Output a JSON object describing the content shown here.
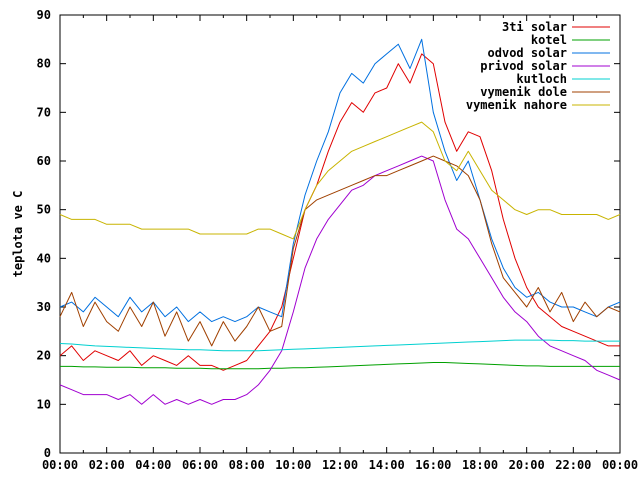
{
  "chart_data": {
    "type": "line",
    "title": "",
    "xlabel": "",
    "ylabel": "teplota ve C",
    "xlim": [
      "00:00",
      "24:00"
    ],
    "ylim": [
      0,
      90
    ],
    "x_ticks": [
      "00:00",
      "02:00",
      "04:00",
      "06:00",
      "08:00",
      "10:00",
      "12:00",
      "14:00",
      "16:00",
      "18:00",
      "20:00",
      "22:00",
      "00:00"
    ],
    "y_ticks": [
      "0",
      "10",
      "20",
      "30",
      "40",
      "50",
      "60",
      "70",
      "80",
      "90"
    ],
    "grid": false,
    "legend_position": "top-right",
    "x": [
      "00:00",
      "00:30",
      "01:00",
      "01:30",
      "02:00",
      "02:30",
      "03:00",
      "03:30",
      "04:00",
      "04:30",
      "05:00",
      "05:30",
      "06:00",
      "06:30",
      "07:00",
      "07:30",
      "08:00",
      "08:30",
      "09:00",
      "09:30",
      "10:00",
      "10:30",
      "11:00",
      "11:30",
      "12:00",
      "12:30",
      "13:00",
      "13:30",
      "14:00",
      "14:30",
      "15:00",
      "15:30",
      "16:00",
      "16:30",
      "17:00",
      "17:30",
      "18:00",
      "18:30",
      "19:00",
      "19:30",
      "20:00",
      "20:30",
      "21:00",
      "21:30",
      "22:00",
      "22:30",
      "23:00",
      "23:30",
      "24:00"
    ],
    "series": [
      {
        "name": "3ti solar",
        "color": "#e00000",
        "values": [
          20,
          22,
          19,
          21,
          20,
          19,
          21,
          18,
          20,
          19,
          18,
          20,
          18,
          18,
          17,
          18,
          19,
          22,
          25,
          30,
          40,
          50,
          55,
          62,
          68,
          72,
          70,
          74,
          75,
          80,
          76,
          82,
          80,
          68,
          62,
          66,
          65,
          58,
          48,
          40,
          34,
          30,
          28,
          26,
          25,
          24,
          23,
          22,
          22
        ]
      },
      {
        "name": "kotel",
        "color": "#00a000",
        "values": [
          17.8,
          17.8,
          17.7,
          17.7,
          17.6,
          17.6,
          17.6,
          17.5,
          17.5,
          17.5,
          17.4,
          17.4,
          17.4,
          17.3,
          17.3,
          17.3,
          17.3,
          17.3,
          17.4,
          17.4,
          17.5,
          17.5,
          17.6,
          17.7,
          17.8,
          17.9,
          18,
          18.1,
          18.2,
          18.3,
          18.4,
          18.5,
          18.6,
          18.6,
          18.5,
          18.4,
          18.3,
          18.2,
          18.1,
          18,
          17.9,
          17.9,
          17.8,
          17.8,
          17.8,
          17.8,
          17.8,
          17.8,
          17.8
        ]
      },
      {
        "name": "odvod solar",
        "color": "#0070e0",
        "values": [
          30,
          31,
          29,
          32,
          30,
          28,
          32,
          29,
          31,
          28,
          30,
          27,
          29,
          27,
          28,
          27,
          28,
          30,
          29,
          28,
          43,
          53,
          60,
          66,
          74,
          78,
          76,
          80,
          82,
          84,
          79,
          85,
          70,
          62,
          56,
          60,
          52,
          44,
          38,
          34,
          32,
          33,
          31,
          30,
          30,
          29,
          28,
          30,
          31
        ]
      },
      {
        "name": "privod solar",
        "color": "#a000d0",
        "values": [
          14,
          13,
          12,
          12,
          12,
          11,
          12,
          10,
          12,
          10,
          11,
          10,
          11,
          10,
          11,
          11,
          12,
          14,
          17,
          21,
          29,
          38,
          44,
          48,
          51,
          54,
          55,
          57,
          58,
          59,
          60,
          61,
          60,
          52,
          46,
          44,
          40,
          36,
          32,
          29,
          27,
          24,
          22,
          21,
          20,
          19,
          17,
          16,
          15
        ]
      },
      {
        "name": "kutloch",
        "color": "#00d0d0",
        "values": [
          22.5,
          22.4,
          22.2,
          22,
          21.9,
          21.8,
          21.7,
          21.6,
          21.5,
          21.4,
          21.3,
          21.2,
          21.2,
          21.1,
          21,
          21,
          21,
          21,
          21.1,
          21.2,
          21.3,
          21.4,
          21.5,
          21.6,
          21.7,
          21.8,
          21.9,
          22,
          22.1,
          22.2,
          22.3,
          22.4,
          22.5,
          22.6,
          22.7,
          22.8,
          22.9,
          23,
          23.1,
          23.2,
          23.2,
          23.2,
          23.2,
          23.1,
          23.1,
          23,
          23,
          23,
          23
        ]
      },
      {
        "name": "vymenik dole",
        "color": "#a04000",
        "values": [
          28,
          33,
          26,
          31,
          27,
          25,
          30,
          26,
          31,
          24,
          29,
          23,
          27,
          22,
          27,
          23,
          26,
          30,
          25,
          26,
          42,
          50,
          52,
          53,
          54,
          55,
          56,
          57,
          57,
          58,
          59,
          60,
          61,
          60,
          59,
          57,
          52,
          43,
          36,
          33,
          30,
          34,
          29,
          33,
          27,
          31,
          28,
          30,
          29
        ]
      },
      {
        "name": "vymenik nahore",
        "color": "#c8b400",
        "values": [
          49,
          48,
          48,
          48,
          47,
          47,
          47,
          46,
          46,
          46,
          46,
          46,
          45,
          45,
          45,
          45,
          45,
          46,
          46,
          45,
          44,
          50,
          55,
          58,
          60,
          62,
          63,
          64,
          65,
          66,
          67,
          68,
          66,
          60,
          58,
          62,
          58,
          54,
          52,
          50,
          49,
          50,
          50,
          49,
          49,
          49,
          49,
          48,
          49
        ]
      }
    ]
  }
}
